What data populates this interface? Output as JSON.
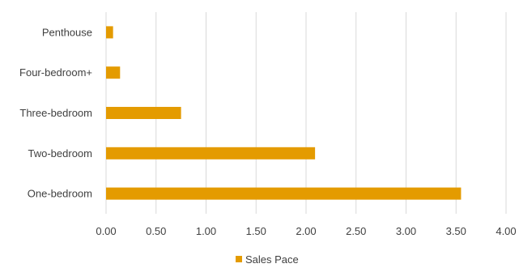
{
  "chart_data": {
    "type": "bar",
    "orientation": "horizontal",
    "categories": [
      "Penthouse",
      "Four-bedroom+",
      "Three-bedroom",
      "Two-bedroom",
      "One-bedroom"
    ],
    "series": [
      {
        "name": "Sales Pace",
        "values": [
          0.07,
          0.14,
          0.75,
          2.09,
          3.55
        ]
      }
    ],
    "xlim": [
      0,
      4
    ],
    "xticks": [
      "0.00",
      "0.50",
      "1.00",
      "1.50",
      "2.00",
      "2.50",
      "3.00",
      "3.50",
      "4.00"
    ],
    "grid": true,
    "legend_position": "bottom",
    "colors": {
      "bar": "#E49B00",
      "grid": "#D9D9D9"
    }
  }
}
